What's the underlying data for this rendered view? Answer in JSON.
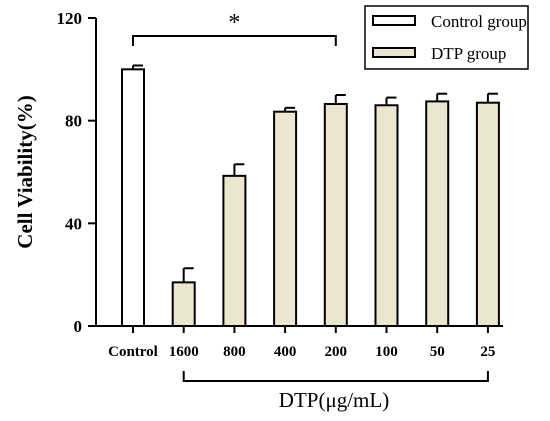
{
  "chart_data": {
    "type": "bar",
    "ylabel": "Cell Viability(%)",
    "ylim": [
      0,
      120
    ],
    "yticks": [
      0,
      40,
      80,
      120
    ],
    "categories": [
      "Control",
      "1600",
      "800",
      "400",
      "200",
      "100",
      "50",
      "25"
    ],
    "series": [
      {
        "name": "Control group",
        "color": "#ffffff",
        "values": [
          100,
          null,
          null,
          null,
          null,
          null,
          null,
          null
        ],
        "errors": [
          1.5,
          null,
          null,
          null,
          null,
          null,
          null,
          null
        ]
      },
      {
        "name": "DTP group",
        "color": "#ede6cf",
        "values": [
          null,
          17,
          58.5,
          83.5,
          86.5,
          86,
          87.5,
          87
        ],
        "errors": [
          null,
          5.5,
          4.5,
          1.5,
          3.5,
          3.0,
          3.0,
          3.5
        ]
      }
    ],
    "significance": {
      "label": "*",
      "from": "Control",
      "to": "200"
    },
    "x_group_label": "DTP(μg/mL)",
    "legend_position": "top-right",
    "grid": false
  }
}
